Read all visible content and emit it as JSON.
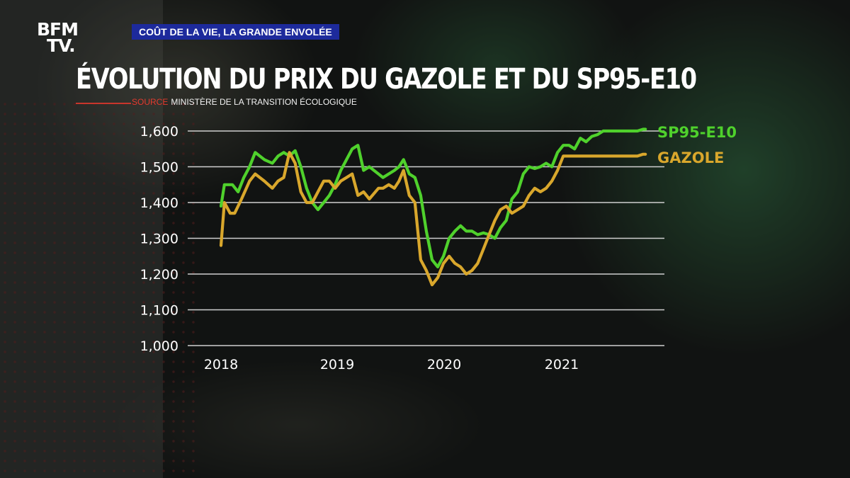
{
  "header": {
    "logo_line1": "BFM",
    "logo_line2": "TV.",
    "kicker": "COÛT DE LA VIE, LA GRANDE ENVOLÉE"
  },
  "title": "ÉVOLUTION DU PRIX DU GAZOLE ET DU SP95-E10",
  "source": {
    "label": "SOURCE",
    "text": "MINISTÈRE DE LA TRANSITION ÉCOLOGIQUE"
  },
  "colors": {
    "sp95": "#4fd12c",
    "gazole": "#d9a72c",
    "kicker_bg": "#1d2a9c",
    "source_label": "#e23a2e"
  },
  "chart_data": {
    "type": "line",
    "title": "ÉVOLUTION DU PRIX DU GAZOLE ET DU SP95-E10",
    "xlabel": "",
    "ylabel": "",
    "ylim": [
      1.0,
      1.6
    ],
    "yticks": [
      "1,600",
      "1,500",
      "1,400",
      "1,300",
      "1,200",
      "1,100",
      "1,000"
    ],
    "xlim": [
      2018.0,
      2021.75
    ],
    "xticks": [
      "2018",
      "2019",
      "2020",
      "2021"
    ],
    "grid": true,
    "legend_position": "right-end",
    "series": [
      {
        "name": "SP95-E10",
        "x": [
          2018.0,
          2018.03,
          2018.1,
          2018.15,
          2018.2,
          2018.25,
          2018.3,
          2018.38,
          2018.45,
          2018.5,
          2018.55,
          2018.6,
          2018.65,
          2018.7,
          2018.75,
          2018.8,
          2018.85,
          2018.9,
          2018.95,
          2019.0,
          2019.05,
          2019.1,
          2019.15,
          2019.2,
          2019.25,
          2019.3,
          2019.38,
          2019.42,
          2019.47,
          2019.52,
          2019.56,
          2019.6,
          2019.65,
          2019.7,
          2019.75,
          2019.8,
          2019.85,
          2019.9,
          2019.95,
          2020.0,
          2020.05,
          2020.1,
          2020.15,
          2020.2,
          2020.25,
          2020.3,
          2020.35,
          2020.4,
          2020.45,
          2020.5,
          2020.55,
          2020.6,
          2020.65,
          2020.7,
          2020.75,
          2020.8,
          2020.85,
          2020.9,
          2020.95,
          2021.0,
          2021.05,
          2021.1,
          2021.15,
          2021.2,
          2021.25,
          2021.3,
          2021.35,
          2021.4,
          2021.45,
          2021.5,
          2021.55,
          2021.6,
          2021.65,
          2021.7,
          2021.72
        ],
        "values": [
          1.39,
          1.45,
          1.45,
          1.43,
          1.47,
          1.5,
          1.54,
          1.52,
          1.51,
          1.53,
          1.54,
          1.53,
          1.545,
          1.5,
          1.44,
          1.4,
          1.38,
          1.4,
          1.42,
          1.45,
          1.49,
          1.52,
          1.55,
          1.56,
          1.49,
          1.5,
          1.48,
          1.47,
          1.48,
          1.49,
          1.5,
          1.52,
          1.48,
          1.47,
          1.42,
          1.32,
          1.24,
          1.22,
          1.25,
          1.3,
          1.32,
          1.335,
          1.32,
          1.32,
          1.31,
          1.315,
          1.31,
          1.3,
          1.33,
          1.35,
          1.41,
          1.43,
          1.48,
          1.5,
          1.495,
          1.5,
          1.51,
          1.5,
          1.54,
          1.56,
          1.56,
          1.55,
          1.58,
          1.57,
          1.585,
          1.59,
          1.6,
          1.6,
          1.6,
          1.6,
          1.6,
          1.6,
          1.6,
          1.605,
          1.605
        ]
      },
      {
        "name": "GAZOLE",
        "x": [
          2018.0,
          2018.03,
          2018.08,
          2018.12,
          2018.18,
          2018.25,
          2018.3,
          2018.38,
          2018.45,
          2018.5,
          2018.55,
          2018.6,
          2018.65,
          2018.7,
          2018.75,
          2018.8,
          2018.85,
          2018.9,
          2018.95,
          2019.0,
          2019.05,
          2019.1,
          2019.15,
          2019.2,
          2019.25,
          2019.3,
          2019.38,
          2019.42,
          2019.47,
          2019.52,
          2019.56,
          2019.6,
          2019.65,
          2019.7,
          2019.75,
          2019.8,
          2019.85,
          2019.9,
          2019.95,
          2020.0,
          2020.05,
          2020.1,
          2020.15,
          2020.2,
          2020.25,
          2020.3,
          2020.35,
          2020.4,
          2020.45,
          2020.5,
          2020.55,
          2020.6,
          2020.65,
          2020.7,
          2020.75,
          2020.8,
          2020.85,
          2020.9,
          2020.95,
          2021.0,
          2021.05,
          2021.1,
          2021.15,
          2021.2,
          2021.25,
          2021.3,
          2021.35,
          2021.4,
          2021.45,
          2021.5,
          2021.55,
          2021.6,
          2021.65,
          2021.7,
          2021.72
        ],
        "values": [
          1.28,
          1.4,
          1.37,
          1.37,
          1.41,
          1.46,
          1.48,
          1.46,
          1.44,
          1.46,
          1.47,
          1.54,
          1.51,
          1.43,
          1.4,
          1.4,
          1.43,
          1.46,
          1.46,
          1.44,
          1.46,
          1.47,
          1.48,
          1.42,
          1.43,
          1.41,
          1.44,
          1.44,
          1.45,
          1.44,
          1.46,
          1.49,
          1.42,
          1.4,
          1.24,
          1.21,
          1.17,
          1.19,
          1.23,
          1.25,
          1.23,
          1.22,
          1.2,
          1.21,
          1.23,
          1.27,
          1.31,
          1.35,
          1.38,
          1.39,
          1.37,
          1.38,
          1.39,
          1.42,
          1.44,
          1.43,
          1.44,
          1.46,
          1.49,
          1.53,
          1.53,
          1.53,
          1.53,
          1.53,
          1.53,
          1.53,
          1.53,
          1.53,
          1.53,
          1.53,
          1.53,
          1.53,
          1.53,
          1.535,
          1.535
        ]
      }
    ]
  }
}
